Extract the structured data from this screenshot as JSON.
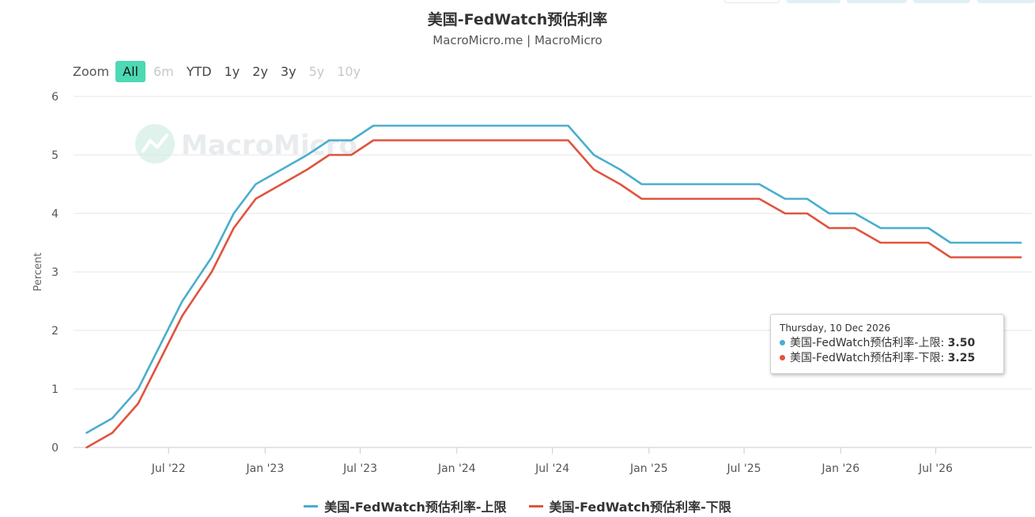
{
  "header": {
    "title": "美国-FedWatch预估利率",
    "subtitle": "MacroMicro.me | MacroMicro"
  },
  "zoom": {
    "label": "Zoom",
    "buttons": [
      {
        "label": "All",
        "state": "selected"
      },
      {
        "label": "6m",
        "state": "disabled"
      },
      {
        "label": "YTD",
        "state": "normal"
      },
      {
        "label": "1y",
        "state": "normal"
      },
      {
        "label": "2y",
        "state": "normal"
      },
      {
        "label": "3y",
        "state": "normal"
      },
      {
        "label": "5y",
        "state": "disabled"
      },
      {
        "label": "10y",
        "state": "disabled"
      }
    ]
  },
  "watermark": {
    "text": "MacroMicro"
  },
  "tooltip": {
    "date": "Thursday, 10 Dec 2026",
    "rows": [
      {
        "label": "美国-FedWatch预估利率-上限: ",
        "value": "3.50",
        "color": "#4aaecf"
      },
      {
        "label": "美国-FedWatch预估利率-下限: ",
        "value": "3.25",
        "color": "#e0543f"
      }
    ]
  },
  "legend": [
    {
      "label": "美国-FedWatch预估利率-上限",
      "color": "#4aaecf"
    },
    {
      "label": "美国-FedWatch预估利率-下限",
      "color": "#e0543f"
    }
  ],
  "chart_data": {
    "type": "line",
    "title": "美国-FedWatch预估利率",
    "subtitle": "MacroMicro.me | MacroMicro",
    "ylabel": "Percent",
    "xlabel": "",
    "ylim": [
      0,
      6
    ],
    "yticks": [
      0,
      1,
      2,
      3,
      4,
      5,
      6
    ],
    "xlim": [
      "2022-01-01",
      "2026-12-31"
    ],
    "xticks": [
      {
        "date": "2022-07-01",
        "label": "Jul '22"
      },
      {
        "date": "2023-01-01",
        "label": "Jan '23"
      },
      {
        "date": "2023-07-01",
        "label": "Jul '23"
      },
      {
        "date": "2024-01-01",
        "label": "Jan '24"
      },
      {
        "date": "2024-07-01",
        "label": "Jul '24"
      },
      {
        "date": "2025-01-01",
        "label": "Jan '25"
      },
      {
        "date": "2025-07-01",
        "label": "Jul '25"
      },
      {
        "date": "2026-01-01",
        "label": "Jan '26"
      },
      {
        "date": "2026-07-01",
        "label": "Jul '26"
      }
    ],
    "grid": true,
    "legend_position": "bottom",
    "series": [
      {
        "name": "美国-FedWatch预估利率-上限",
        "color": "#4aaecf",
        "points": [
          [
            "2022-01-26",
            0.25
          ],
          [
            "2022-03-16",
            0.5
          ],
          [
            "2022-05-04",
            1.0
          ],
          [
            "2022-06-15",
            1.75
          ],
          [
            "2022-07-27",
            2.5
          ],
          [
            "2022-09-21",
            3.25
          ],
          [
            "2022-11-02",
            4.0
          ],
          [
            "2022-12-14",
            4.5
          ],
          [
            "2023-02-01",
            4.75
          ],
          [
            "2023-03-22",
            5.0
          ],
          [
            "2023-05-03",
            5.25
          ],
          [
            "2023-06-14",
            5.25
          ],
          [
            "2023-07-26",
            5.5
          ],
          [
            "2024-06-12",
            5.5
          ],
          [
            "2024-07-31",
            5.5
          ],
          [
            "2024-09-18",
            5.0
          ],
          [
            "2024-11-07",
            4.75
          ],
          [
            "2024-12-18",
            4.5
          ],
          [
            "2025-01-29",
            4.5
          ],
          [
            "2025-07-30",
            4.5
          ],
          [
            "2025-09-17",
            4.25
          ],
          [
            "2025-10-29",
            4.25
          ],
          [
            "2025-12-10",
            4.0
          ],
          [
            "2026-01-28",
            4.0
          ],
          [
            "2026-03-18",
            3.75
          ],
          [
            "2026-04-29",
            3.75
          ],
          [
            "2026-06-17",
            3.75
          ],
          [
            "2026-07-29",
            3.5
          ],
          [
            "2026-09-16",
            3.5
          ],
          [
            "2026-10-28",
            3.5
          ],
          [
            "2026-12-10",
            3.5
          ]
        ]
      },
      {
        "name": "美国-FedWatch预估利率-下限",
        "color": "#e0543f",
        "points": [
          [
            "2022-01-26",
            0.0
          ],
          [
            "2022-03-16",
            0.25
          ],
          [
            "2022-05-04",
            0.75
          ],
          [
            "2022-06-15",
            1.5
          ],
          [
            "2022-07-27",
            2.25
          ],
          [
            "2022-09-21",
            3.0
          ],
          [
            "2022-11-02",
            3.75
          ],
          [
            "2022-12-14",
            4.25
          ],
          [
            "2023-02-01",
            4.5
          ],
          [
            "2023-03-22",
            4.75
          ],
          [
            "2023-05-03",
            5.0
          ],
          [
            "2023-06-14",
            5.0
          ],
          [
            "2023-07-26",
            5.25
          ],
          [
            "2024-06-12",
            5.25
          ],
          [
            "2024-07-31",
            5.25
          ],
          [
            "2024-09-18",
            4.75
          ],
          [
            "2024-11-07",
            4.5
          ],
          [
            "2024-12-18",
            4.25
          ],
          [
            "2025-01-29",
            4.25
          ],
          [
            "2025-07-30",
            4.25
          ],
          [
            "2025-09-17",
            4.0
          ],
          [
            "2025-10-29",
            4.0
          ],
          [
            "2025-12-10",
            3.75
          ],
          [
            "2026-01-28",
            3.75
          ],
          [
            "2026-03-18",
            3.5
          ],
          [
            "2026-04-29",
            3.5
          ],
          [
            "2026-06-17",
            3.5
          ],
          [
            "2026-07-29",
            3.25
          ],
          [
            "2026-09-16",
            3.25
          ],
          [
            "2026-10-28",
            3.25
          ],
          [
            "2026-12-10",
            3.25
          ]
        ]
      }
    ]
  }
}
